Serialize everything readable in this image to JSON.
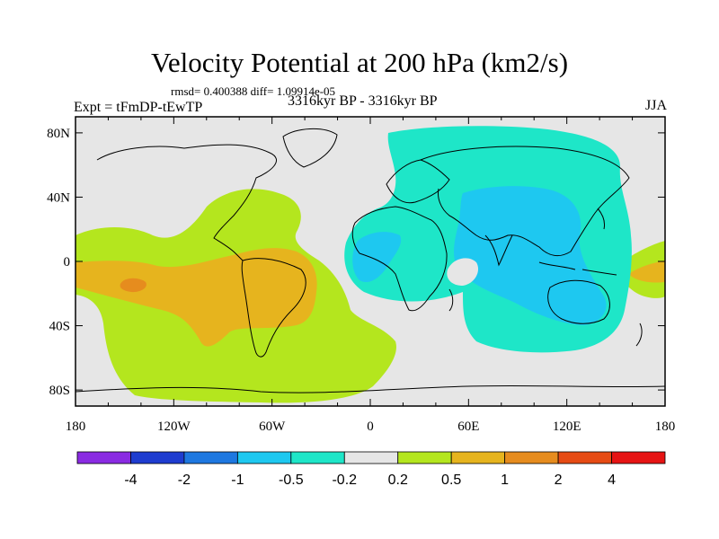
{
  "title": "Velocity Potential at 200 hPa (km2/s)",
  "stats": "rmsd= 0.400388 diff= 1.09914e-05",
  "expt": "Expt = tFmDP-tEwTP",
  "period": "3316kyr BP - 3316kyr BP",
  "season": "JJA",
  "axes": {
    "x_ticks": [
      "180",
      "120W",
      "60W",
      "0",
      "60E",
      "120E",
      "180"
    ],
    "y_ticks": [
      "80N",
      "40N",
      "0",
      "40S",
      "80S"
    ]
  },
  "colorbar": {
    "colors": [
      "#8a2be2",
      "#1e3ccf",
      "#1e78e0",
      "#1ec8f0",
      "#1ee6c8",
      "#e6e6e6",
      "#b4e61e",
      "#e6b41e",
      "#e68c1e",
      "#e64b14",
      "#e61414"
    ],
    "labels": [
      "-4",
      "-2",
      "-1",
      "-0.5",
      "-0.2",
      "0.2",
      "0.5",
      "1",
      "2",
      "4"
    ]
  },
  "field_colors": {
    "background": "#e6e6e6",
    "pos_weak": "#b4e61e",
    "pos_mid": "#e6b41e",
    "pos_strong": "#e68c1e",
    "neg_weak": "#1ee6c8",
    "neg_mid": "#1ec8f0"
  }
}
